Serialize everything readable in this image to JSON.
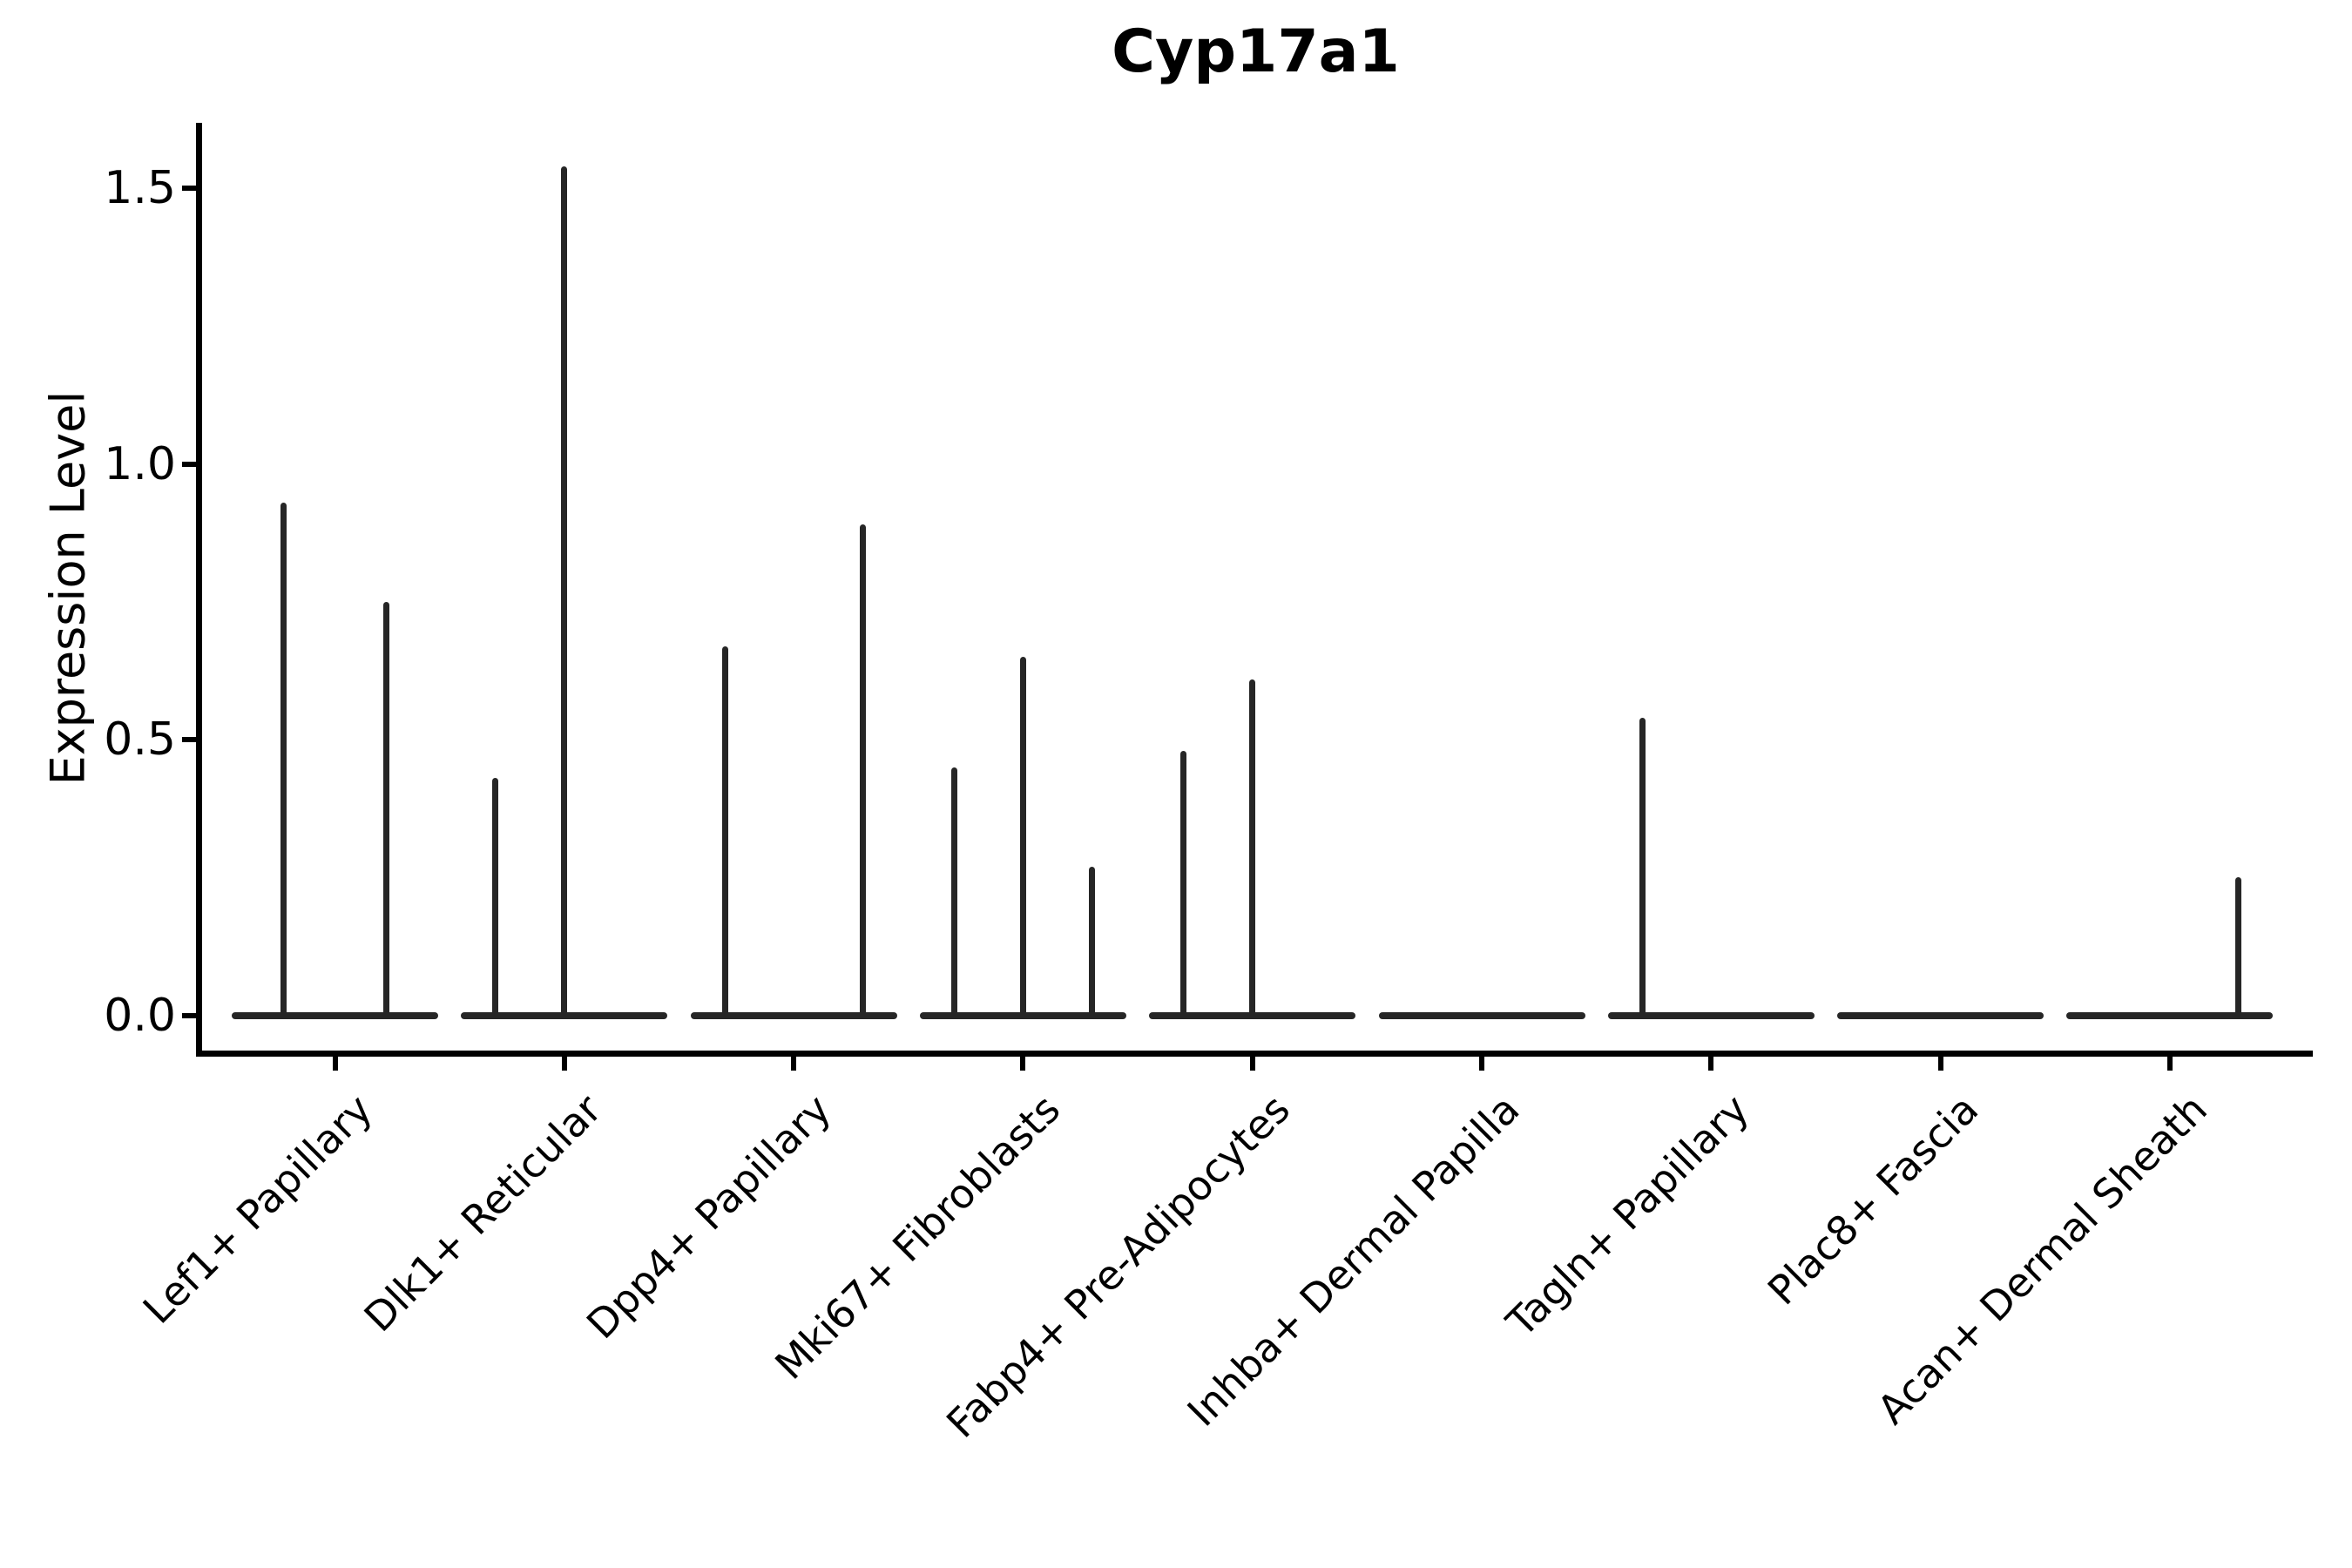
{
  "title": "Cyp17a1",
  "y_axis": {
    "label": "Expression Level",
    "ticks": [
      "0.0",
      "0.5",
      "1.0",
      "1.5"
    ]
  },
  "chart_data": {
    "type": "violin",
    "title": "Cyp17a1",
    "xlabel": "",
    "ylabel": "Expression Level",
    "ylim": [
      -0.07,
      1.62
    ],
    "yticks": [
      0.0,
      0.5,
      1.0,
      1.5
    ],
    "grid": false,
    "legend": false,
    "description": "Zero-inflated expression violins collapse to a flat bar at 0 with one thin vertical density spike per violin; some cell types contain 2 or 3 dodged violins, spikes reach the maximum expression value.",
    "categories": [
      "Lef1+ Papillary",
      "Dlk1+ Reticular",
      "Dpp4+ Papillary",
      "Mki67+ Fibroblasts",
      "Fabp4+ Pre-Adipocytes",
      "Inhba+ Dermal Papilla",
      "Tagln+ Papillary",
      "Plac8+ Fascia",
      "Acan+ Dermal Sheath"
    ],
    "violins": [
      {
        "category": "Lef1+ Papillary",
        "n_violins": 2,
        "spikes": [
          {
            "slot": 1,
            "max_expression": 0.93
          },
          {
            "slot": 2,
            "max_expression": 0.75
          }
        ]
      },
      {
        "category": "Dlk1+ Reticular",
        "n_violins": 3,
        "spikes": [
          {
            "slot": 1,
            "max_expression": 0.43
          },
          {
            "slot": 2,
            "max_expression": 1.54
          }
        ]
      },
      {
        "category": "Dpp4+ Papillary",
        "n_violins": 3,
        "spikes": [
          {
            "slot": 1,
            "max_expression": 0.67
          },
          {
            "slot": 3,
            "max_expression": 0.89
          }
        ]
      },
      {
        "category": "Mki67+ Fibroblasts",
        "n_violins": 3,
        "spikes": [
          {
            "slot": 1,
            "max_expression": 0.45
          },
          {
            "slot": 2,
            "max_expression": 0.65
          },
          {
            "slot": 3,
            "max_expression": 0.27
          }
        ]
      },
      {
        "category": "Fabp4+ Pre-Adipocytes",
        "n_violins": 3,
        "spikes": [
          {
            "slot": 1,
            "max_expression": 0.48
          },
          {
            "slot": 2,
            "max_expression": 0.61
          }
        ]
      },
      {
        "category": "Inhba+ Dermal Papilla",
        "n_violins": 3,
        "spikes": []
      },
      {
        "category": "Tagln+ Papillary",
        "n_violins": 3,
        "spikes": [
          {
            "slot": 1,
            "max_expression": 0.54
          }
        ]
      },
      {
        "category": "Plac8+ Fascia",
        "n_violins": 3,
        "spikes": []
      },
      {
        "category": "Acan+ Dermal Sheath",
        "n_violins": 3,
        "spikes": [
          {
            "slot": 3,
            "max_expression": 0.25
          }
        ]
      }
    ],
    "colors": {
      "violin_line": "#262626",
      "axis": "#000000",
      "background": "#ffffff"
    }
  }
}
